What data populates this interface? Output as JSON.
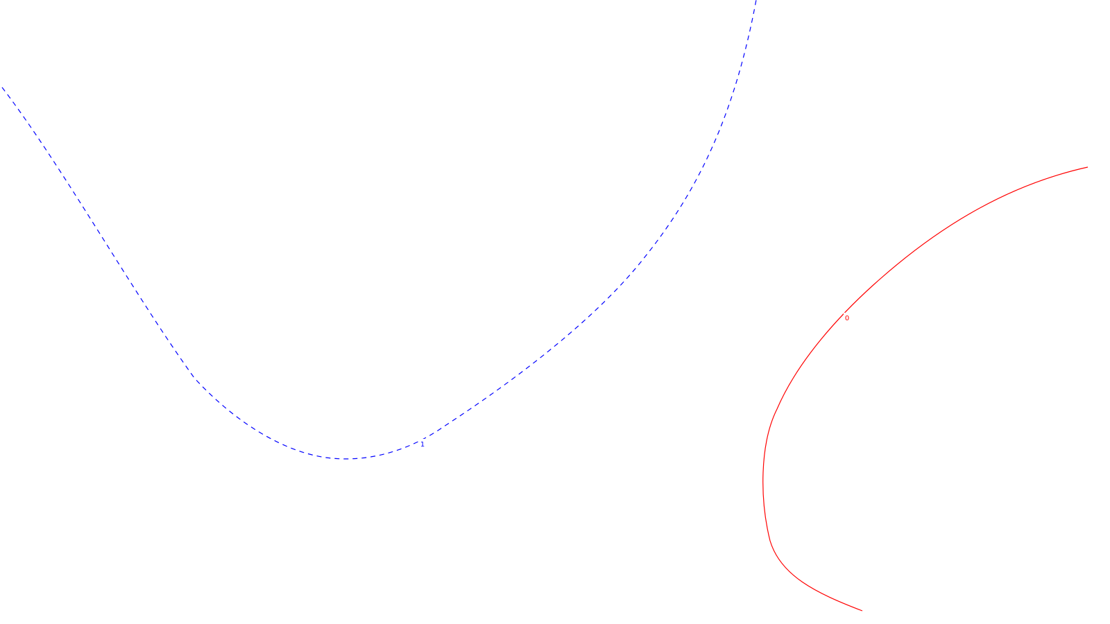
{
  "chart_data": {
    "type": "contour",
    "title": "",
    "xlabel": "",
    "ylabel": "",
    "grid": false,
    "legend": "none",
    "series": [
      {
        "level": "1",
        "color": "#0000ff",
        "line_style": "dashed",
        "label": "1"
      },
      {
        "level": "0",
        "color": "#ff0000",
        "line_style": "solid",
        "label": "0"
      }
    ]
  }
}
